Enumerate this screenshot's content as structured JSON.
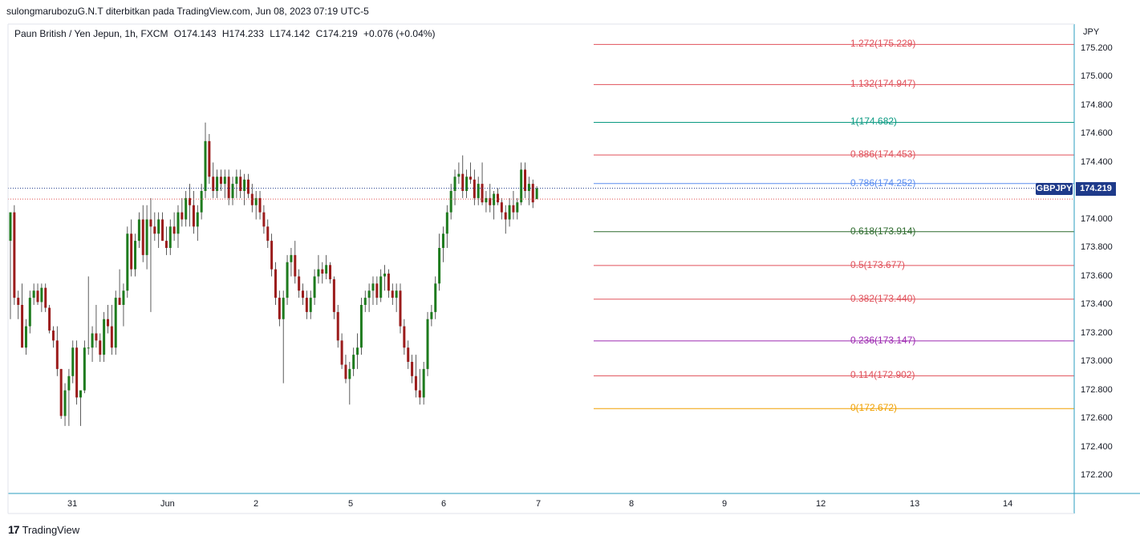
{
  "header": {
    "publisher_line": "sulongmarubozuG.N.T diterbitkan pada TradingView.com, Jun 08, 2023 07:19 UTC-5"
  },
  "legend": {
    "symbol": "Paun British / Yen Jepun, 1h, FXCM",
    "open": "O174.143",
    "high": "H174.233",
    "low": "L174.142",
    "close": "C174.219",
    "change": "+0.076 (+0.04%)"
  },
  "price_axis": {
    "currency": "JPY",
    "ticks": [
      "175.200",
      "175.000",
      "174.800",
      "174.600",
      "174.400",
      "174.200",
      "174.000",
      "173.800",
      "173.600",
      "173.400",
      "173.200",
      "173.000",
      "172.800",
      "172.600",
      "172.400",
      "172.200"
    ]
  },
  "time_axis": {
    "ticks": [
      "31",
      "Jun",
      "2",
      "5",
      "6",
      "7",
      "8",
      "9",
      "12",
      "13",
      "14"
    ]
  },
  "current_price": {
    "ticker": "GBPJPY",
    "value": "174.219",
    "color": "#1e3a8a"
  },
  "fib_levels": [
    {
      "label": "1.272(175.229)",
      "price": 175.229,
      "color": "#e0505a"
    },
    {
      "label": "1.132(174.947)",
      "price": 174.947,
      "color": "#e0505a"
    },
    {
      "label": "1(174.682)",
      "price": 174.682,
      "color": "#089981"
    },
    {
      "label": "0.886(174.453)",
      "price": 174.453,
      "color": "#e0505a"
    },
    {
      "label": "0.786(174.252)",
      "price": 174.252,
      "color": "#5b8def"
    },
    {
      "label": "0.618(173.914)",
      "price": 173.914,
      "color": "#2e6b2e"
    },
    {
      "label": "0.5(173.677)",
      "price": 173.677,
      "color": "#e0505a"
    },
    {
      "label": "0.382(173.440)",
      "price": 173.44,
      "color": "#e0505a"
    },
    {
      "label": "0.236(173.147)",
      "price": 173.147,
      "color": "#9c27b0"
    },
    {
      "label": "0.114(172.902)",
      "price": 172.902,
      "color": "#e0505a"
    },
    {
      "label": "0(172.672)",
      "price": 172.672,
      "color": "#f0a000"
    }
  ],
  "colors": {
    "up": "#1e7b1e",
    "down": "#9b1c1c",
    "axis": "#2a9dbf"
  },
  "brand": {
    "logo_text": "17",
    "name": "TradingView"
  },
  "chart_data": {
    "type": "candlestick",
    "interval": "1h",
    "ylim": [
      172.1,
      175.3
    ],
    "candles": [
      {
        "o": 173.85,
        "h": 174.05,
        "l": 173.3,
        "c": 174.05
      },
      {
        "o": 174.05,
        "h": 174.1,
        "l": 173.4,
        "c": 173.45
      },
      {
        "o": 173.45,
        "h": 173.5,
        "l": 173.3,
        "c": 173.4
      },
      {
        "o": 173.4,
        "h": 173.55,
        "l": 173.1,
        "c": 173.1
      },
      {
        "o": 173.1,
        "h": 173.3,
        "l": 173.05,
        "c": 173.25
      },
      {
        "o": 173.25,
        "h": 173.5,
        "l": 173.2,
        "c": 173.45
      },
      {
        "o": 173.45,
        "h": 173.55,
        "l": 173.4,
        "c": 173.5
      },
      {
        "o": 173.5,
        "h": 173.55,
        "l": 173.4,
        "c": 173.42
      },
      {
        "o": 173.42,
        "h": 173.55,
        "l": 173.35,
        "c": 173.52
      },
      {
        "o": 173.52,
        "h": 173.55,
        "l": 173.35,
        "c": 173.38
      },
      {
        "o": 173.38,
        "h": 173.4,
        "l": 173.2,
        "c": 173.22
      },
      {
        "o": 173.22,
        "h": 173.25,
        "l": 173.1,
        "c": 173.15
      },
      {
        "o": 173.15,
        "h": 173.25,
        "l": 172.9,
        "c": 172.95
      },
      {
        "o": 172.95,
        "h": 172.95,
        "l": 172.6,
        "c": 172.62
      },
      {
        "o": 172.62,
        "h": 172.85,
        "l": 172.55,
        "c": 172.8
      },
      {
        "o": 172.8,
        "h": 172.95,
        "l": 172.55,
        "c": 172.9
      },
      {
        "o": 172.9,
        "h": 173.15,
        "l": 172.85,
        "c": 173.1
      },
      {
        "o": 173.1,
        "h": 173.15,
        "l": 172.7,
        "c": 172.75
      },
      {
        "o": 172.75,
        "h": 172.8,
        "l": 172.55,
        "c": 172.8
      },
      {
        "o": 172.8,
        "h": 173.15,
        "l": 172.78,
        "c": 173.1
      },
      {
        "o": 173.1,
        "h": 173.6,
        "l": 173.05,
        "c": 173.1
      },
      {
        "o": 173.1,
        "h": 173.25,
        "l": 173.0,
        "c": 173.2
      },
      {
        "o": 173.2,
        "h": 173.4,
        "l": 173.1,
        "c": 173.15
      },
      {
        "o": 173.15,
        "h": 173.2,
        "l": 173.0,
        "c": 173.05
      },
      {
        "o": 173.05,
        "h": 173.35,
        "l": 173.0,
        "c": 173.3
      },
      {
        "o": 173.3,
        "h": 173.4,
        "l": 173.2,
        "c": 173.25
      },
      {
        "o": 173.25,
        "h": 173.4,
        "l": 173.05,
        "c": 173.1
      },
      {
        "o": 173.1,
        "h": 173.5,
        "l": 173.05,
        "c": 173.45
      },
      {
        "o": 173.45,
        "h": 173.65,
        "l": 173.4,
        "c": 173.4
      },
      {
        "o": 173.4,
        "h": 173.55,
        "l": 173.25,
        "c": 173.5
      },
      {
        "o": 173.5,
        "h": 173.95,
        "l": 173.45,
        "c": 173.9
      },
      {
        "o": 173.9,
        "h": 174.0,
        "l": 173.6,
        "c": 173.65
      },
      {
        "o": 173.65,
        "h": 173.9,
        "l": 173.6,
        "c": 173.85
      },
      {
        "o": 173.85,
        "h": 174.05,
        "l": 173.8,
        "c": 174.0
      },
      {
        "o": 174.0,
        "h": 174.1,
        "l": 173.7,
        "c": 173.75
      },
      {
        "o": 173.75,
        "h": 174.1,
        "l": 173.65,
        "c": 174.0
      },
      {
        "o": 174.0,
        "h": 174.15,
        "l": 173.35,
        "c": 173.95
      },
      {
        "o": 173.95,
        "h": 174.05,
        "l": 173.85,
        "c": 173.9
      },
      {
        "o": 173.9,
        "h": 174.05,
        "l": 173.8,
        "c": 174.0
      },
      {
        "o": 174.0,
        "h": 174.05,
        "l": 173.85,
        "c": 173.85
      },
      {
        "o": 173.85,
        "h": 173.95,
        "l": 173.75,
        "c": 173.8
      },
      {
        "o": 173.8,
        "h": 174.0,
        "l": 173.75,
        "c": 173.95
      },
      {
        "o": 173.95,
        "h": 174.05,
        "l": 173.85,
        "c": 173.9
      },
      {
        "o": 173.9,
        "h": 174.1,
        "l": 173.8,
        "c": 174.05
      },
      {
        "o": 174.05,
        "h": 174.15,
        "l": 173.95,
        "c": 174.0
      },
      {
        "o": 174.0,
        "h": 174.2,
        "l": 173.95,
        "c": 174.15
      },
      {
        "o": 174.15,
        "h": 174.25,
        "l": 173.95,
        "c": 174.1
      },
      {
        "o": 174.1,
        "h": 174.2,
        "l": 173.9,
        "c": 173.95
      },
      {
        "o": 173.95,
        "h": 174.1,
        "l": 173.85,
        "c": 174.05
      },
      {
        "o": 174.05,
        "h": 174.25,
        "l": 174.0,
        "c": 174.2
      },
      {
        "o": 174.2,
        "h": 174.68,
        "l": 174.15,
        "c": 174.55
      },
      {
        "o": 174.55,
        "h": 174.6,
        "l": 174.25,
        "c": 174.3
      },
      {
        "o": 174.3,
        "h": 174.4,
        "l": 174.15,
        "c": 174.2
      },
      {
        "o": 174.2,
        "h": 174.35,
        "l": 174.15,
        "c": 174.3
      },
      {
        "o": 174.3,
        "h": 174.35,
        "l": 174.2,
        "c": 174.25
      },
      {
        "o": 174.25,
        "h": 174.35,
        "l": 174.15,
        "c": 174.3
      },
      {
        "o": 174.3,
        "h": 174.35,
        "l": 174.1,
        "c": 174.15
      },
      {
        "o": 174.15,
        "h": 174.3,
        "l": 174.1,
        "c": 174.25
      },
      {
        "o": 174.25,
        "h": 174.35,
        "l": 174.15,
        "c": 174.3
      },
      {
        "o": 174.3,
        "h": 174.35,
        "l": 174.15,
        "c": 174.2
      },
      {
        "o": 174.2,
        "h": 174.32,
        "l": 174.1,
        "c": 174.28
      },
      {
        "o": 174.28,
        "h": 174.32,
        "l": 174.15,
        "c": 174.18
      },
      {
        "o": 174.18,
        "h": 174.25,
        "l": 174.05,
        "c": 174.1
      },
      {
        "o": 174.1,
        "h": 174.2,
        "l": 174.0,
        "c": 174.15
      },
      {
        "o": 174.15,
        "h": 174.2,
        "l": 174.0,
        "c": 174.05
      },
      {
        "o": 174.05,
        "h": 174.1,
        "l": 173.9,
        "c": 173.95
      },
      {
        "o": 173.95,
        "h": 174.0,
        "l": 173.8,
        "c": 173.85
      },
      {
        "o": 173.85,
        "h": 173.9,
        "l": 173.6,
        "c": 173.65
      },
      {
        "o": 173.65,
        "h": 173.7,
        "l": 173.4,
        "c": 173.45
      },
      {
        "o": 173.45,
        "h": 173.5,
        "l": 173.25,
        "c": 173.3
      },
      {
        "o": 173.3,
        "h": 173.5,
        "l": 172.85,
        "c": 173.45
      },
      {
        "o": 173.45,
        "h": 173.75,
        "l": 173.4,
        "c": 173.7
      },
      {
        "o": 173.7,
        "h": 173.8,
        "l": 173.6,
        "c": 173.75
      },
      {
        "o": 173.75,
        "h": 173.85,
        "l": 173.55,
        "c": 173.6
      },
      {
        "o": 173.6,
        "h": 173.65,
        "l": 173.45,
        "c": 173.5
      },
      {
        "o": 173.5,
        "h": 173.55,
        "l": 173.4,
        "c": 173.45
      },
      {
        "o": 173.45,
        "h": 173.5,
        "l": 173.3,
        "c": 173.35
      },
      {
        "o": 173.35,
        "h": 173.5,
        "l": 173.3,
        "c": 173.45
      },
      {
        "o": 173.45,
        "h": 173.65,
        "l": 173.4,
        "c": 173.6
      },
      {
        "o": 173.6,
        "h": 173.75,
        "l": 173.55,
        "c": 173.65
      },
      {
        "o": 173.65,
        "h": 173.7,
        "l": 173.55,
        "c": 173.62
      },
      {
        "o": 173.62,
        "h": 173.75,
        "l": 173.58,
        "c": 173.68
      },
      {
        "o": 173.68,
        "h": 173.7,
        "l": 173.55,
        "c": 173.58
      },
      {
        "o": 173.58,
        "h": 173.6,
        "l": 173.3,
        "c": 173.35
      },
      {
        "o": 173.35,
        "h": 173.4,
        "l": 173.1,
        "c": 173.15
      },
      {
        "o": 173.15,
        "h": 173.2,
        "l": 172.95,
        "c": 172.98
      },
      {
        "o": 172.98,
        "h": 173.05,
        "l": 172.85,
        "c": 172.88
      },
      {
        "o": 172.88,
        "h": 173.0,
        "l": 172.7,
        "c": 172.95
      },
      {
        "o": 172.95,
        "h": 173.1,
        "l": 172.9,
        "c": 173.05
      },
      {
        "o": 173.05,
        "h": 173.2,
        "l": 172.95,
        "c": 173.1
      },
      {
        "o": 173.1,
        "h": 173.45,
        "l": 173.05,
        "c": 173.4
      },
      {
        "o": 173.4,
        "h": 173.5,
        "l": 173.35,
        "c": 173.45
      },
      {
        "o": 173.45,
        "h": 173.55,
        "l": 173.35,
        "c": 173.5
      },
      {
        "o": 173.5,
        "h": 173.6,
        "l": 173.4,
        "c": 173.55
      },
      {
        "o": 173.55,
        "h": 173.6,
        "l": 173.4,
        "c": 173.45
      },
      {
        "o": 173.45,
        "h": 173.65,
        "l": 173.42,
        "c": 173.6
      },
      {
        "o": 173.6,
        "h": 173.68,
        "l": 173.5,
        "c": 173.62
      },
      {
        "o": 173.62,
        "h": 173.65,
        "l": 173.45,
        "c": 173.5
      },
      {
        "o": 173.5,
        "h": 173.55,
        "l": 173.4,
        "c": 173.45
      },
      {
        "o": 173.45,
        "h": 173.55,
        "l": 173.35,
        "c": 173.5
      },
      {
        "o": 173.5,
        "h": 173.55,
        "l": 173.2,
        "c": 173.25
      },
      {
        "o": 173.25,
        "h": 173.3,
        "l": 173.05,
        "c": 173.1
      },
      {
        "o": 173.1,
        "h": 173.15,
        "l": 172.95,
        "c": 173.0
      },
      {
        "o": 173.0,
        "h": 173.05,
        "l": 172.85,
        "c": 172.9
      },
      {
        "o": 172.9,
        "h": 173.05,
        "l": 172.75,
        "c": 172.8
      },
      {
        "o": 172.8,
        "h": 172.95,
        "l": 172.7,
        "c": 172.75
      },
      {
        "o": 172.75,
        "h": 173.0,
        "l": 172.7,
        "c": 172.95
      },
      {
        "o": 172.95,
        "h": 173.35,
        "l": 172.9,
        "c": 173.3
      },
      {
        "o": 173.3,
        "h": 173.4,
        "l": 173.25,
        "c": 173.35
      },
      {
        "o": 173.35,
        "h": 173.6,
        "l": 173.3,
        "c": 173.55
      },
      {
        "o": 173.55,
        "h": 173.9,
        "l": 173.5,
        "c": 173.8
      },
      {
        "o": 173.8,
        "h": 173.95,
        "l": 173.7,
        "c": 173.9
      },
      {
        "o": 173.9,
        "h": 174.1,
        "l": 173.8,
        "c": 174.05
      },
      {
        "o": 174.05,
        "h": 174.25,
        "l": 174.0,
        "c": 174.2
      },
      {
        "o": 174.2,
        "h": 174.35,
        "l": 174.1,
        "c": 174.3
      },
      {
        "o": 174.3,
        "h": 174.4,
        "l": 174.25,
        "c": 174.32
      },
      {
        "o": 174.32,
        "h": 174.45,
        "l": 174.15,
        "c": 174.2
      },
      {
        "o": 174.2,
        "h": 174.35,
        "l": 174.15,
        "c": 174.3
      },
      {
        "o": 174.3,
        "h": 174.4,
        "l": 174.25,
        "c": 174.28
      },
      {
        "o": 174.28,
        "h": 174.35,
        "l": 174.1,
        "c": 174.15
      },
      {
        "o": 174.15,
        "h": 174.3,
        "l": 174.1,
        "c": 174.25
      },
      {
        "o": 174.25,
        "h": 174.4,
        "l": 174.1,
        "c": 174.12
      },
      {
        "o": 174.12,
        "h": 174.2,
        "l": 174.05,
        "c": 174.15
      },
      {
        "o": 174.15,
        "h": 174.25,
        "l": 174.05,
        "c": 174.1
      },
      {
        "o": 174.1,
        "h": 174.2,
        "l": 174.0,
        "c": 174.18
      },
      {
        "o": 174.18,
        "h": 174.22,
        "l": 174.1,
        "c": 174.12
      },
      {
        "o": 174.12,
        "h": 174.15,
        "l": 174.0,
        "c": 174.05
      },
      {
        "o": 174.05,
        "h": 174.1,
        "l": 173.9,
        "c": 174.0
      },
      {
        "o": 174.0,
        "h": 174.15,
        "l": 173.95,
        "c": 174.1
      },
      {
        "o": 174.1,
        "h": 174.2,
        "l": 174.0,
        "c": 174.05
      },
      {
        "o": 174.05,
        "h": 174.15,
        "l": 174.0,
        "c": 174.12
      },
      {
        "o": 174.12,
        "h": 174.4,
        "l": 174.1,
        "c": 174.35
      },
      {
        "o": 174.35,
        "h": 174.4,
        "l": 174.15,
        "c": 174.2
      },
      {
        "o": 174.2,
        "h": 174.3,
        "l": 174.1,
        "c": 174.25
      },
      {
        "o": 174.25,
        "h": 174.28,
        "l": 174.08,
        "c": 174.12
      },
      {
        "o": 174.143,
        "h": 174.233,
        "l": 174.142,
        "c": 174.219
      }
    ]
  }
}
